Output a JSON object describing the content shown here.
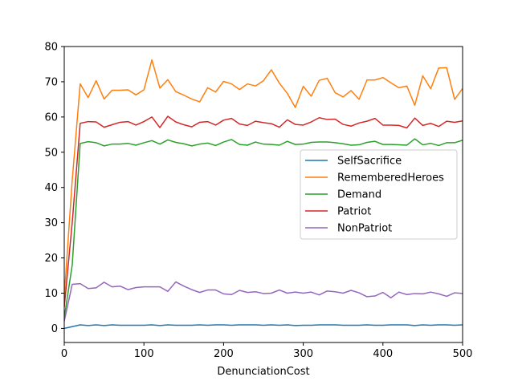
{
  "chart_data": {
    "type": "line",
    "xlabel": "DenunciationCost",
    "ylabel": "",
    "xlim": [
      0,
      500
    ],
    "ylim": [
      -4,
      80
    ],
    "xticks": [
      0,
      100,
      200,
      300,
      400,
      500
    ],
    "yticks": [
      0,
      10,
      20,
      30,
      40,
      50,
      60,
      70,
      80
    ],
    "grid": false,
    "legend_position": "center-right",
    "x": [
      0,
      10,
      20,
      30,
      40,
      50,
      60,
      70,
      80,
      90,
      100,
      110,
      120,
      130,
      140,
      150,
      160,
      170,
      180,
      190,
      200,
      210,
      220,
      230,
      240,
      250,
      260,
      270,
      280,
      290,
      300,
      310,
      320,
      330,
      340,
      350,
      360,
      370,
      380,
      390,
      400,
      410,
      420,
      430,
      440,
      450,
      460,
      470,
      480,
      490,
      500
    ],
    "series": [
      {
        "name": "SelfSacrifice",
        "color": "#1f77b4",
        "values": [
          0,
          0.5,
          1,
          0.8,
          1,
          0.8,
          1,
          0.9,
          0.9,
          0.9,
          0.9,
          1,
          0.8,
          1,
          0.9,
          0.9,
          0.9,
          1,
          0.9,
          1,
          1,
          0.9,
          1,
          1,
          1,
          0.9,
          1,
          0.9,
          1,
          0.8,
          0.9,
          0.9,
          1,
          1,
          1,
          0.9,
          0.9,
          0.9,
          1,
          0.9,
          0.9,
          1,
          1,
          1,
          0.8,
          1,
          0.9,
          1,
          1,
          0.9,
          1
        ]
      },
      {
        "name": "RememberedHeroes",
        "color": "#ff7f0e",
        "values": [
          9,
          42,
          69.4,
          65.5,
          70.3,
          65.1,
          67.6,
          67.6,
          67.7,
          66.3,
          67.7,
          76.2,
          68.2,
          70.6,
          67.2,
          66.2,
          65.1,
          64.3,
          68.3,
          67.1,
          70.1,
          69.4,
          67.8,
          69.4,
          68.8,
          70.3,
          73.4,
          69.6,
          66.7,
          62.7,
          68.7,
          65.9,
          70.4,
          71,
          66.9,
          65.7,
          67.5,
          65,
          70.5,
          70.5,
          71.2,
          69.7,
          68.3,
          68.8,
          63.3,
          71.7,
          68,
          73.9,
          74,
          65,
          68.1
        ]
      },
      {
        "name": "Demand",
        "color": "#2ca02c",
        "values": [
          3,
          18,
          52.5,
          53,
          52.7,
          51.8,
          52.3,
          52.3,
          52.5,
          52,
          52.7,
          53.3,
          52.3,
          53.5,
          52.8,
          52.4,
          51.8,
          52.3,
          52.6,
          51.9,
          52.9,
          53.6,
          52.2,
          52,
          52.9,
          52.3,
          52.2,
          52,
          53.1,
          52.2,
          52.3,
          52.8,
          52.9,
          52.9,
          52.7,
          52.4,
          52,
          52.1,
          52.8,
          53.1,
          52.2,
          52.2,
          52.1,
          52,
          53.8,
          52.1,
          52.5,
          51.9,
          52.7,
          52.7,
          53.4
        ]
      },
      {
        "name": "Patriot",
        "color": "#d62728",
        "values": [
          6,
          30,
          58.2,
          58.7,
          58.6,
          57.1,
          57.8,
          58.5,
          58.7,
          57.7,
          58.7,
          60,
          57,
          60.2,
          58.6,
          57.8,
          57.2,
          58.5,
          58.7,
          57.7,
          59.1,
          59.6,
          58,
          57.6,
          58.8,
          58.4,
          58.1,
          57.1,
          59.2,
          57.9,
          57.7,
          58.6,
          59.8,
          59.3,
          59.4,
          57.9,
          57.4,
          58.3,
          58.8,
          59.6,
          57.7,
          57.7,
          57.6,
          56.9,
          59.7,
          57.6,
          58.2,
          57.3,
          58.8,
          58.5,
          58.9
        ]
      },
      {
        "name": "NonPatriot",
        "color": "#9467bd",
        "values": [
          2,
          12.5,
          12.7,
          11.3,
          11.5,
          13.1,
          11.8,
          12,
          11,
          11.6,
          11.8,
          11.8,
          11.8,
          10.5,
          13.2,
          12,
          11,
          10.2,
          10.9,
          10.9,
          9.8,
          9.6,
          10.8,
          10.2,
          10.4,
          9.9,
          10,
          10.9,
          10,
          10.3,
          10,
          10.3,
          9.5,
          10.6,
          10.4,
          10,
          10.8,
          10.1,
          9,
          9.2,
          10.2,
          8.7,
          10.3,
          9.6,
          9.9,
          9.8,
          10.3,
          9.8,
          9.1,
          10.1,
          9.9
        ]
      }
    ]
  }
}
